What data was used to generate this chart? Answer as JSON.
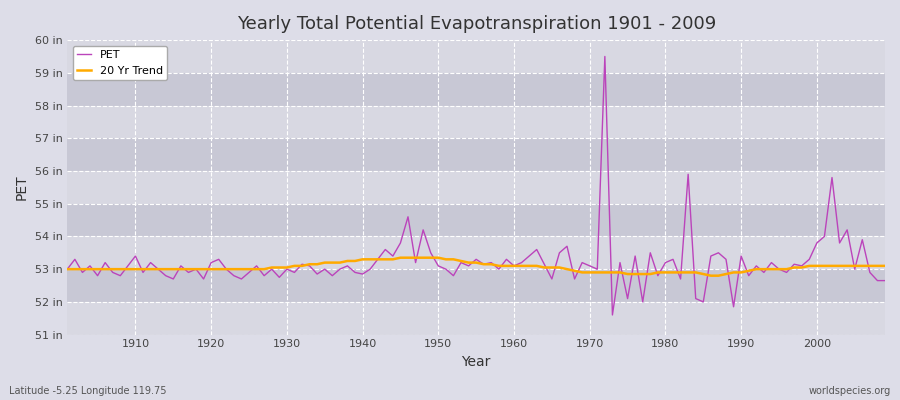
{
  "title": "Yearly Total Potential Evapotranspiration 1901 - 2009",
  "xlabel": "Year",
  "ylabel": "PET",
  "subtitle": "Latitude -5.25 Longitude 119.75",
  "watermark": "worldspecies.org",
  "pet_color": "#bb44bb",
  "trend_color": "#ffaa00",
  "fig_bg": "#dddde8",
  "plot_bg": "#e0e0e8",
  "grid_color": "#ffffff",
  "band_color_light": "#d8d8e2",
  "band_color_dark": "#c8c8d5",
  "ylim": [
    51,
    60
  ],
  "yticks": [
    51,
    52,
    53,
    54,
    55,
    56,
    57,
    58,
    59,
    60
  ],
  "ytick_labels": [
    "51 in",
    "52 in",
    "53 in",
    "54 in",
    "55 in",
    "56 in",
    "57 in",
    "58 in",
    "59 in",
    "60 in"
  ],
  "years": [
    1901,
    1902,
    1903,
    1904,
    1905,
    1906,
    1907,
    1908,
    1909,
    1910,
    1911,
    1912,
    1913,
    1914,
    1915,
    1916,
    1917,
    1918,
    1919,
    1920,
    1921,
    1922,
    1923,
    1924,
    1925,
    1926,
    1927,
    1928,
    1929,
    1930,
    1931,
    1932,
    1933,
    1934,
    1935,
    1936,
    1937,
    1938,
    1939,
    1940,
    1941,
    1942,
    1943,
    1944,
    1945,
    1946,
    1947,
    1948,
    1949,
    1950,
    1951,
    1952,
    1953,
    1954,
    1955,
    1956,
    1957,
    1958,
    1959,
    1960,
    1961,
    1962,
    1963,
    1964,
    1965,
    1966,
    1967,
    1968,
    1969,
    1970,
    1971,
    1972,
    1973,
    1974,
    1975,
    1976,
    1977,
    1978,
    1979,
    1980,
    1981,
    1982,
    1983,
    1984,
    1985,
    1986,
    1987,
    1988,
    1989,
    1990,
    1991,
    1992,
    1993,
    1994,
    1995,
    1996,
    1997,
    1998,
    1999,
    2000,
    2001,
    2002,
    2003,
    2004,
    2005,
    2006,
    2007,
    2008,
    2009
  ],
  "pet": [
    53.0,
    53.3,
    52.9,
    53.1,
    52.8,
    53.2,
    52.9,
    52.8,
    53.1,
    53.4,
    52.9,
    53.2,
    53.0,
    52.8,
    52.7,
    53.1,
    52.9,
    53.0,
    52.7,
    53.2,
    53.3,
    53.0,
    52.8,
    52.7,
    52.9,
    53.1,
    52.8,
    53.0,
    52.75,
    53.0,
    52.9,
    53.15,
    53.1,
    52.85,
    53.0,
    52.8,
    53.0,
    53.1,
    52.9,
    52.85,
    53.0,
    53.3,
    53.6,
    53.4,
    53.8,
    54.6,
    53.2,
    54.2,
    53.5,
    53.1,
    53.0,
    52.8,
    53.2,
    53.1,
    53.3,
    53.15,
    53.2,
    53.0,
    53.3,
    53.1,
    53.2,
    53.4,
    53.6,
    53.15,
    52.7,
    53.5,
    53.7,
    52.7,
    53.2,
    53.1,
    53.0,
    59.5,
    51.6,
    53.2,
    52.1,
    53.4,
    52.0,
    53.5,
    52.8,
    53.2,
    53.3,
    52.7,
    55.9,
    52.1,
    52.0,
    53.4,
    53.5,
    53.3,
    51.85,
    53.4,
    52.8,
    53.1,
    52.9,
    53.2,
    53.0,
    52.9,
    53.15,
    53.1,
    53.3,
    53.8,
    54.0,
    55.8,
    53.8,
    54.2,
    53.0,
    53.9,
    52.9,
    52.65,
    52.65
  ],
  "trend": [
    53.0,
    53.0,
    53.0,
    53.0,
    53.0,
    53.0,
    53.0,
    53.0,
    53.0,
    53.0,
    53.0,
    53.0,
    53.0,
    53.0,
    53.0,
    53.0,
    53.0,
    53.0,
    53.0,
    53.0,
    53.0,
    53.0,
    53.0,
    53.0,
    53.0,
    53.0,
    53.0,
    53.05,
    53.05,
    53.05,
    53.1,
    53.1,
    53.15,
    53.15,
    53.2,
    53.2,
    53.2,
    53.25,
    53.25,
    53.3,
    53.3,
    53.3,
    53.3,
    53.3,
    53.35,
    53.35,
    53.35,
    53.35,
    53.35,
    53.35,
    53.3,
    53.3,
    53.25,
    53.2,
    53.2,
    53.15,
    53.15,
    53.1,
    53.1,
    53.1,
    53.1,
    53.1,
    53.1,
    53.05,
    53.05,
    53.05,
    53.0,
    52.95,
    52.9,
    52.9,
    52.9,
    52.9,
    52.9,
    52.9,
    52.85,
    52.85,
    52.85,
    52.85,
    52.9,
    52.9,
    52.9,
    52.9,
    52.9,
    52.9,
    52.85,
    52.8,
    52.8,
    52.85,
    52.9,
    52.9,
    52.95,
    53.0,
    53.0,
    53.0,
    53.0,
    53.0,
    53.05,
    53.05,
    53.1,
    53.1,
    53.1,
    53.1,
    53.1,
    53.1,
    53.1,
    53.1,
    53.1,
    53.1,
    53.1
  ]
}
